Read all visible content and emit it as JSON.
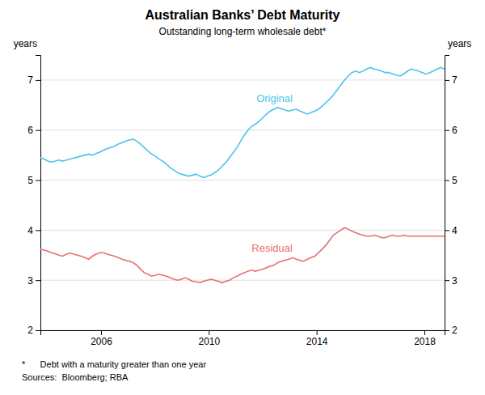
{
  "chart_data": {
    "type": "line",
    "title": "Australian Banks’ Debt Maturity",
    "subtitle": "Outstanding long-term wholesale debt*",
    "y_label": "years",
    "y2_label": "years",
    "footnotes": [
      "*      Debt with a maturity greater than one year",
      "Sources:  Bloomberg; RBA"
    ],
    "x": [
      2003.75,
      2003.8876,
      2004.0252,
      2004.1628,
      2004.3005,
      2004.4381,
      2004.5757,
      2004.7133,
      2004.8509,
      2004.9885,
      2005.1261,
      2005.2638,
      2005.4014,
      2005.539,
      2005.6766,
      2005.8142,
      2005.9518,
      2006.0894,
      2006.2271,
      2006.3647,
      2006.5023,
      2006.6399,
      2006.7775,
      2006.9151,
      2007.0528,
      2007.1904,
      2007.328,
      2007.4656,
      2007.6032,
      2007.7408,
      2007.8784,
      2008.0161,
      2008.1537,
      2008.2913,
      2008.4289,
      2008.5665,
      2008.7041,
      2008.8417,
      2008.9794,
      2009.117,
      2009.2546,
      2009.3922,
      2009.5298,
      2009.6674,
      2009.805,
      2009.9427,
      2010.0803,
      2010.2179,
      2010.3555,
      2010.4931,
      2010.6307,
      2010.7683,
      2010.906,
      2011.0436,
      2011.1812,
      2011.3188,
      2011.4564,
      2011.594,
      2011.7317,
      2011.8693,
      2012.0069,
      2012.1445,
      2012.2821,
      2012.4197,
      2012.5573,
      2012.695,
      2012.8326,
      2012.9702,
      2013.1078,
      2013.2454,
      2013.383,
      2013.5206,
      2013.6583,
      2013.7959,
      2013.9335,
      2014.0711,
      2014.2087,
      2014.3463,
      2014.4839,
      2014.6216,
      2014.7592,
      2014.8968,
      2015.0344,
      2015.172,
      2015.3096,
      2015.4472,
      2015.5849,
      2015.7225,
      2015.8601,
      2015.9977,
      2016.1353,
      2016.2729,
      2016.4106,
      2016.5482,
      2016.6858,
      2016.8234,
      2016.961,
      2017.0986,
      2017.2362,
      2017.3739,
      2017.5115,
      2017.6491,
      2017.7867,
      2017.9243,
      2018.0619,
      2018.1995,
      2018.3372,
      2018.4748,
      2018.6124,
      2018.75
    ],
    "series": [
      {
        "name": "Original",
        "color": "#4DC4E8",
        "values": [
          5.45,
          5.42,
          5.38,
          5.36,
          5.38,
          5.4,
          5.38,
          5.4,
          5.42,
          5.44,
          5.46,
          5.48,
          5.5,
          5.52,
          5.5,
          5.53,
          5.56,
          5.6,
          5.63,
          5.65,
          5.68,
          5.72,
          5.75,
          5.78,
          5.8,
          5.82,
          5.78,
          5.72,
          5.65,
          5.58,
          5.52,
          5.48,
          5.42,
          5.38,
          5.32,
          5.25,
          5.2,
          5.15,
          5.12,
          5.1,
          5.08,
          5.1,
          5.12,
          5.08,
          5.05,
          5.08,
          5.1,
          5.15,
          5.2,
          5.28,
          5.35,
          5.45,
          5.55,
          5.65,
          5.78,
          5.9,
          6.0,
          6.08,
          6.12,
          6.18,
          6.25,
          6.32,
          6.38,
          6.42,
          6.45,
          6.43,
          6.4,
          6.38,
          6.4,
          6.42,
          6.38,
          6.35,
          6.32,
          6.35,
          6.38,
          6.42,
          6.48,
          6.55,
          6.62,
          6.7,
          6.8,
          6.9,
          7.0,
          7.08,
          7.15,
          7.18,
          7.15,
          7.18,
          7.22,
          7.25,
          7.22,
          7.2,
          7.18,
          7.15,
          7.15,
          7.12,
          7.1,
          7.08,
          7.12,
          7.18,
          7.22,
          7.2,
          7.18,
          7.15,
          7.12,
          7.15,
          7.18,
          7.22,
          7.25,
          7.22
        ]
      },
      {
        "name": "Residual",
        "color": "#E87070",
        "values": [
          3.62,
          3.6,
          3.58,
          3.55,
          3.53,
          3.5,
          3.48,
          3.52,
          3.54,
          3.52,
          3.5,
          3.48,
          3.45,
          3.42,
          3.48,
          3.52,
          3.55,
          3.55,
          3.52,
          3.5,
          3.48,
          3.45,
          3.42,
          3.4,
          3.38,
          3.35,
          3.3,
          3.22,
          3.15,
          3.12,
          3.08,
          3.1,
          3.12,
          3.1,
          3.08,
          3.05,
          3.02,
          3.0,
          3.02,
          3.05,
          3.02,
          2.98,
          2.97,
          2.95,
          2.98,
          3.0,
          3.02,
          3.0,
          2.98,
          2.95,
          2.98,
          3.0,
          3.05,
          3.08,
          3.12,
          3.15,
          3.18,
          3.2,
          3.18,
          3.2,
          3.22,
          3.25,
          3.28,
          3.3,
          3.35,
          3.38,
          3.4,
          3.42,
          3.45,
          3.42,
          3.4,
          3.38,
          3.42,
          3.45,
          3.48,
          3.55,
          3.62,
          3.7,
          3.8,
          3.9,
          3.95,
          4.0,
          4.05,
          4.02,
          3.98,
          3.95,
          3.92,
          3.9,
          3.88,
          3.88,
          3.9,
          3.88,
          3.85,
          3.85,
          3.88,
          3.9,
          3.88,
          3.88,
          3.9,
          3.88,
          3.88,
          3.88,
          3.88,
          3.88,
          3.88,
          3.88,
          3.88,
          3.88,
          3.88,
          3.88
        ]
      }
    ],
    "xlim": [
      2003.75,
      2018.75
    ],
    "xticks": [
      2006,
      2010,
      2014,
      2018
    ],
    "ylim": [
      2,
      7.5
    ],
    "yticks": [
      2,
      3,
      4,
      5,
      6,
      7
    ],
    "y2lim": [
      2,
      7.5
    ],
    "y2ticks": [
      2,
      3,
      4,
      5,
      6,
      7
    ],
    "grid": true
  }
}
